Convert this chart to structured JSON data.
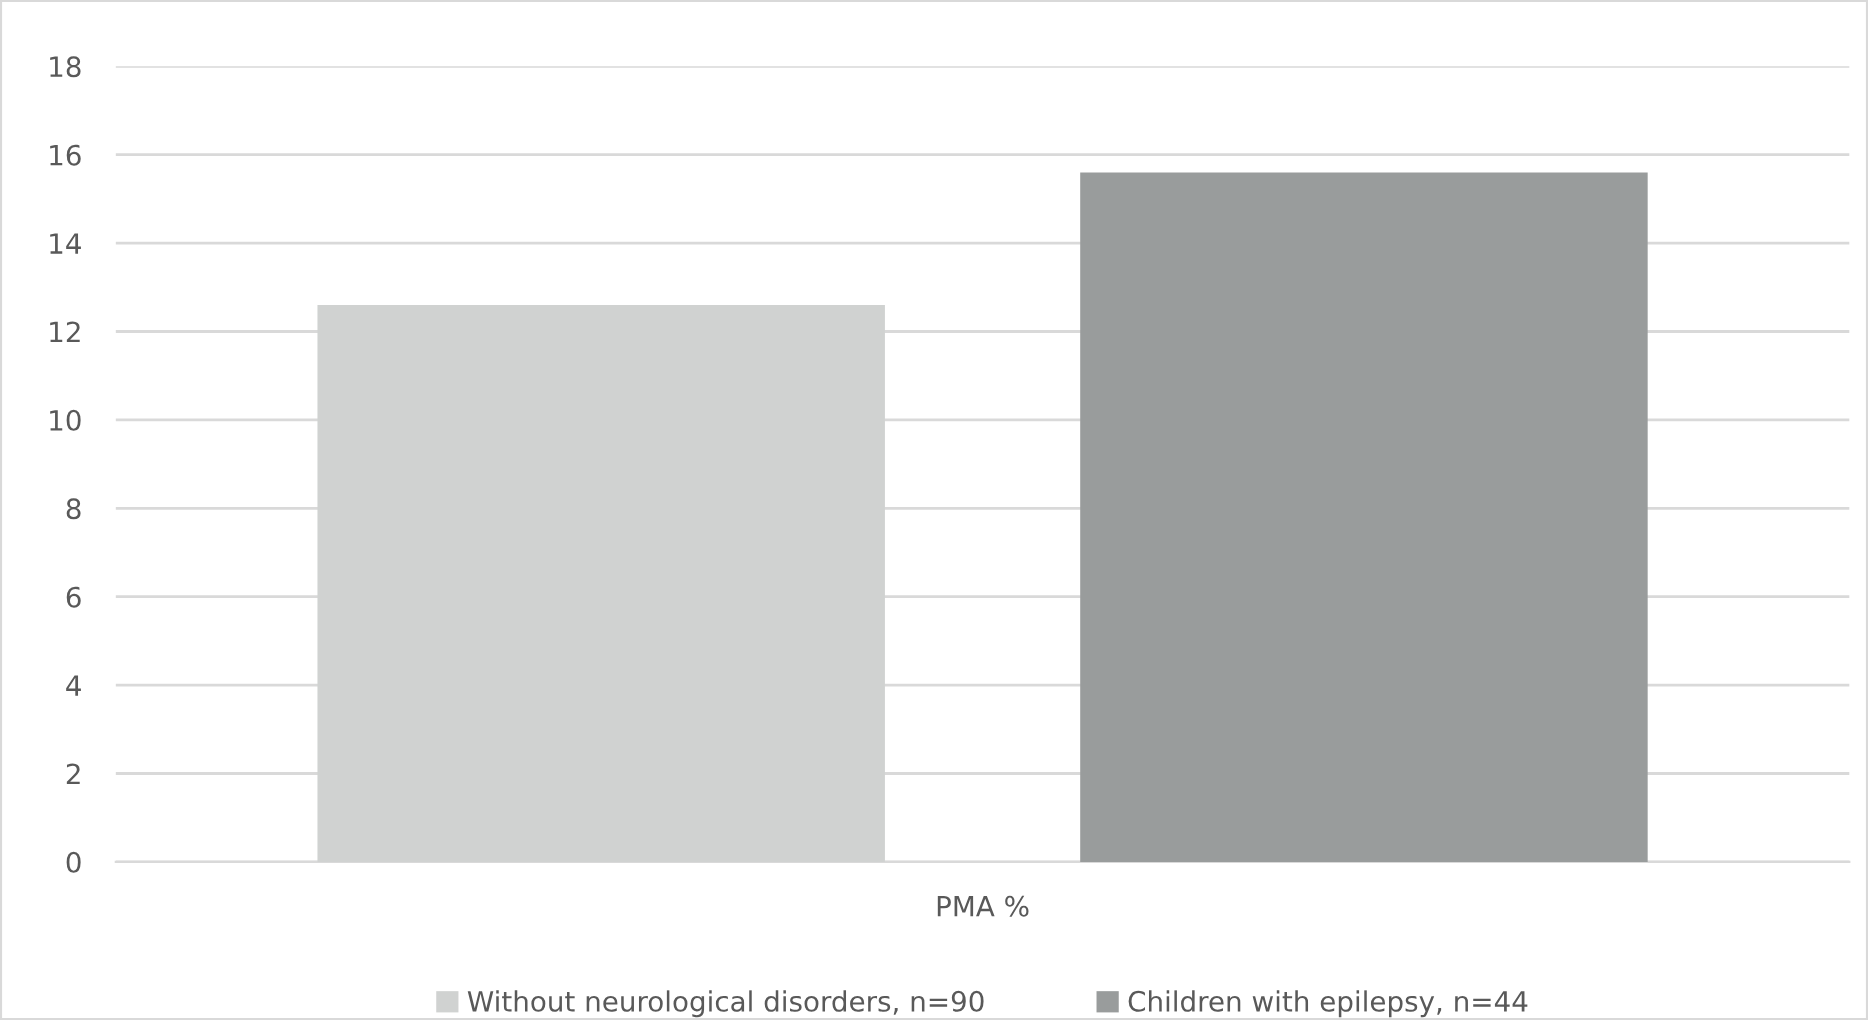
{
  "chart_data": {
    "type": "bar",
    "categories": [
      "PMA %"
    ],
    "series": [
      {
        "name": "Without neurological disorders, n=90",
        "color": "#d0d2d1",
        "values": [
          12.6
        ]
      },
      {
        "name": "Children with epilepsy, n=44",
        "color": "#999c9c",
        "values": [
          15.6
        ]
      }
    ],
    "ylim": [
      0,
      18
    ],
    "yticks": [
      0,
      2,
      4,
      6,
      8,
      10,
      12,
      14,
      16,
      18
    ],
    "grid": "y",
    "legend": "bottom"
  }
}
